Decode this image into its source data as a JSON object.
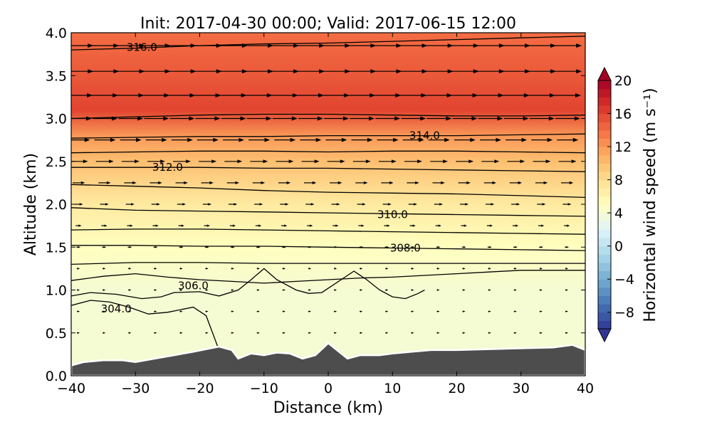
{
  "chart_data": {
    "type": "heatmap",
    "title": "Init: 2017-04-30 00:00; Valid: 2017-06-15 12:00",
    "xlabel": "Distance (km)",
    "ylabel": "Altitude (km)",
    "xlim": [
      -40,
      40
    ],
    "ylim": [
      0.0,
      4.0
    ],
    "x_ticks": [
      "−40",
      "−30",
      "−20",
      "−10",
      "0",
      "10",
      "20",
      "30",
      "40"
    ],
    "y_ticks": [
      "0.0",
      "0.5",
      "1.0",
      "1.5",
      "2.0",
      "2.5",
      "3.0",
      "3.5",
      "4.0"
    ],
    "colorbar": {
      "label": "Horizontal wind speed (m s⁻¹)",
      "range": [
        -10,
        20
      ],
      "ticks": [
        "−8",
        "−4",
        "0",
        "4",
        "8",
        "12",
        "16",
        "20"
      ],
      "extend": "both",
      "colormap": "RdYlBu_r"
    },
    "wind_speed_profile": [
      {
        "altitude_km": 0.3,
        "speed": 4
      },
      {
        "altitude_km": 0.6,
        "speed": 4
      },
      {
        "altitude_km": 1.0,
        "speed": 4
      },
      {
        "altitude_km": 1.5,
        "speed": 5
      },
      {
        "altitude_km": 2.0,
        "speed": 7
      },
      {
        "altitude_km": 2.5,
        "speed": 10
      },
      {
        "altitude_km": 2.8,
        "speed": 12
      },
      {
        "altitude_km": 3.1,
        "speed": 16
      },
      {
        "altitude_km": 3.5,
        "speed": 15
      },
      {
        "altitude_km": 4.0,
        "speed": 14
      }
    ],
    "theta_contours": [
      {
        "label": "304.0",
        "label_pos": [
          -33,
          0.78
        ],
        "points": [
          [
            -40,
            0.82
          ],
          [
            -37,
            0.88
          ],
          [
            -34,
            0.86
          ],
          [
            -31,
            0.8
          ],
          [
            -28,
            0.72
          ],
          [
            -25,
            0.74
          ],
          [
            -21,
            0.8
          ],
          [
            -19,
            0.7
          ],
          [
            -18,
            0.5
          ],
          [
            -17,
            0.3
          ]
        ]
      },
      {
        "label": "",
        "label_pos": null,
        "points": [
          [
            -40,
            0.93
          ],
          [
            -37,
            0.97
          ],
          [
            -33,
            0.95
          ],
          [
            -29,
            0.9
          ],
          [
            -26,
            0.92
          ],
          [
            -24,
            0.97
          ],
          [
            -20,
            0.98
          ],
          [
            -17,
            0.93
          ],
          [
            -14,
            1.0
          ],
          [
            -12,
            1.12
          ],
          [
            -10,
            1.25
          ],
          [
            -8,
            1.12
          ],
          [
            -5,
            1.0
          ],
          [
            -3,
            0.96
          ],
          [
            -1,
            0.97
          ],
          [
            0,
            1.02
          ],
          [
            2,
            1.12
          ],
          [
            4,
            1.22
          ],
          [
            6,
            1.12
          ],
          [
            8,
            1.0
          ],
          [
            10,
            0.92
          ],
          [
            12,
            0.9
          ],
          [
            14,
            0.96
          ],
          [
            15,
            1.0
          ]
        ]
      },
      {
        "label": "306.0",
        "label_pos": [
          -21,
          1.05
        ],
        "points": [
          [
            -40,
            1.11
          ],
          [
            -35,
            1.16
          ],
          [
            -30,
            1.19
          ],
          [
            -25,
            1.15
          ],
          [
            -20,
            1.12
          ],
          [
            -15,
            1.1
          ],
          [
            -10,
            1.08
          ],
          [
            -5,
            1.1
          ],
          [
            0,
            1.12
          ],
          [
            5,
            1.14
          ],
          [
            10,
            1.15
          ],
          [
            15,
            1.17
          ],
          [
            20,
            1.19
          ],
          [
            25,
            1.21
          ],
          [
            30,
            1.23
          ],
          [
            35,
            1.23
          ],
          [
            40,
            1.23
          ]
        ]
      },
      {
        "label": "",
        "label_pos": null,
        "points": [
          [
            -40,
            1.3
          ],
          [
            -30,
            1.32
          ],
          [
            -20,
            1.32
          ],
          [
            -10,
            1.31
          ],
          [
            0,
            1.31
          ],
          [
            10,
            1.31
          ],
          [
            20,
            1.31
          ],
          [
            30,
            1.31
          ],
          [
            40,
            1.31
          ]
        ]
      },
      {
        "label": "308.0",
        "label_pos": [
          12,
          1.49
        ],
        "points": [
          [
            -40,
            1.52
          ],
          [
            -30,
            1.52
          ],
          [
            -20,
            1.51
          ],
          [
            -10,
            1.51
          ],
          [
            0,
            1.5
          ],
          [
            10,
            1.49
          ],
          [
            20,
            1.48
          ],
          [
            30,
            1.47
          ],
          [
            40,
            1.46
          ]
        ]
      },
      {
        "label": "",
        "label_pos": null,
        "points": [
          [
            -40,
            1.7
          ],
          [
            -30,
            1.71
          ],
          [
            -20,
            1.71
          ],
          [
            -10,
            1.7
          ],
          [
            0,
            1.69
          ],
          [
            10,
            1.68
          ],
          [
            20,
            1.67
          ],
          [
            30,
            1.66
          ],
          [
            40,
            1.65
          ]
        ]
      },
      {
        "label": "310.0",
        "label_pos": [
          10,
          1.88
        ],
        "points": [
          [
            -40,
            1.96
          ],
          [
            -30,
            1.93
          ],
          [
            -20,
            1.92
          ],
          [
            -10,
            1.91
          ],
          [
            0,
            1.9
          ],
          [
            10,
            1.89
          ],
          [
            20,
            1.88
          ],
          [
            30,
            1.87
          ],
          [
            40,
            1.86
          ]
        ]
      },
      {
        "label": "",
        "label_pos": null,
        "points": [
          [
            -40,
            2.23
          ],
          [
            -30,
            2.21
          ],
          [
            -20,
            2.19
          ],
          [
            -10,
            2.16
          ],
          [
            0,
            2.14
          ],
          [
            10,
            2.13
          ],
          [
            20,
            2.12
          ],
          [
            30,
            2.1
          ],
          [
            40,
            2.08
          ]
        ]
      },
      {
        "label": "312.0",
        "label_pos": [
          -25,
          2.43
        ],
        "points": [
          [
            -40,
            2.43
          ],
          [
            -30,
            2.43
          ],
          [
            -20,
            2.43
          ],
          [
            -10,
            2.42
          ],
          [
            0,
            2.42
          ],
          [
            10,
            2.41
          ],
          [
            20,
            2.4
          ],
          [
            30,
            2.39
          ],
          [
            40,
            2.38
          ]
        ]
      },
      {
        "label": "",
        "label_pos": null,
        "points": [
          [
            -40,
            2.6
          ],
          [
            -30,
            2.61
          ],
          [
            -20,
            2.62
          ],
          [
            -10,
            2.62
          ],
          [
            0,
            2.61
          ],
          [
            10,
            2.62
          ],
          [
            20,
            2.62
          ],
          [
            30,
            2.61
          ],
          [
            40,
            2.6
          ]
        ]
      },
      {
        "label": "314.0",
        "label_pos": [
          15,
          2.8
        ],
        "points": [
          [
            -40,
            2.77
          ],
          [
            -30,
            2.78
          ],
          [
            -20,
            2.79
          ],
          [
            -10,
            2.79
          ],
          [
            0,
            2.8
          ],
          [
            10,
            2.8
          ],
          [
            20,
            2.8
          ],
          [
            30,
            2.81
          ],
          [
            40,
            2.82
          ]
        ]
      },
      {
        "label": "",
        "label_pos": null,
        "points": [
          [
            -40,
            3.0
          ],
          [
            -30,
            3.02
          ],
          [
            -20,
            3.04
          ],
          [
            -10,
            3.05
          ],
          [
            0,
            3.05
          ],
          [
            10,
            3.04
          ],
          [
            20,
            3.03
          ],
          [
            30,
            3.03
          ],
          [
            40,
            3.04
          ]
        ]
      },
      {
        "label": "316.0",
        "label_pos": [
          -29,
          3.83
        ],
        "points": [
          [
            -40,
            3.8
          ],
          [
            -30,
            3.82
          ],
          [
            -20,
            3.85
          ],
          [
            -10,
            3.87
          ],
          [
            0,
            3.88
          ],
          [
            10,
            3.9
          ],
          [
            20,
            3.92
          ],
          [
            30,
            3.94
          ],
          [
            40,
            3.96
          ]
        ]
      }
    ],
    "wind_barbs": {
      "x_km": [
        -39,
        -35,
        -31,
        -27,
        -23,
        -19,
        -15,
        -11,
        -7,
        -3,
        1,
        5,
        9,
        13,
        17,
        21,
        25,
        29,
        33,
        37
      ],
      "levels": [
        {
          "altitude_km": 3.85,
          "speed": 15
        },
        {
          "altitude_km": 3.55,
          "speed": 15
        },
        {
          "altitude_km": 3.27,
          "speed": 14
        },
        {
          "altitude_km": 3.0,
          "speed": 13
        },
        {
          "altitude_km": 2.75,
          "speed": 11
        },
        {
          "altitude_km": 2.5,
          "speed": 9
        },
        {
          "altitude_km": 2.25,
          "speed": 6
        },
        {
          "altitude_km": 2.0,
          "speed": 4
        },
        {
          "altitude_km": 1.75,
          "speed": 2.5
        },
        {
          "altitude_km": 1.5,
          "speed": 1.5
        },
        {
          "altitude_km": 1.25,
          "speed": 0.8
        },
        {
          "altitude_km": 1.0,
          "speed": 0.5
        },
        {
          "altitude_km": 0.75,
          "speed": 0.5
        },
        {
          "altitude_km": 0.5,
          "speed": 0.4
        }
      ]
    },
    "terrain_km": [
      [
        -40,
        0.12
      ],
      [
        -38,
        0.16
      ],
      [
        -35,
        0.18
      ],
      [
        -32,
        0.18
      ],
      [
        -30,
        0.16
      ],
      [
        -27,
        0.2
      ],
      [
        -24,
        0.24
      ],
      [
        -21,
        0.28
      ],
      [
        -19,
        0.31
      ],
      [
        -17,
        0.34
      ],
      [
        -15,
        0.3
      ],
      [
        -14,
        0.2
      ],
      [
        -12,
        0.26
      ],
      [
        -10,
        0.24
      ],
      [
        -8,
        0.27
      ],
      [
        -6,
        0.26
      ],
      [
        -4,
        0.2
      ],
      [
        -2,
        0.24
      ],
      [
        0,
        0.38
      ],
      [
        1,
        0.32
      ],
      [
        2,
        0.26
      ],
      [
        3,
        0.2
      ],
      [
        5,
        0.24
      ],
      [
        8,
        0.24
      ],
      [
        10,
        0.26
      ],
      [
        13,
        0.28
      ],
      [
        16,
        0.3
      ],
      [
        20,
        0.3
      ],
      [
        25,
        0.31
      ],
      [
        30,
        0.32
      ],
      [
        35,
        0.33
      ],
      [
        38,
        0.36
      ],
      [
        40,
        0.3
      ]
    ]
  }
}
